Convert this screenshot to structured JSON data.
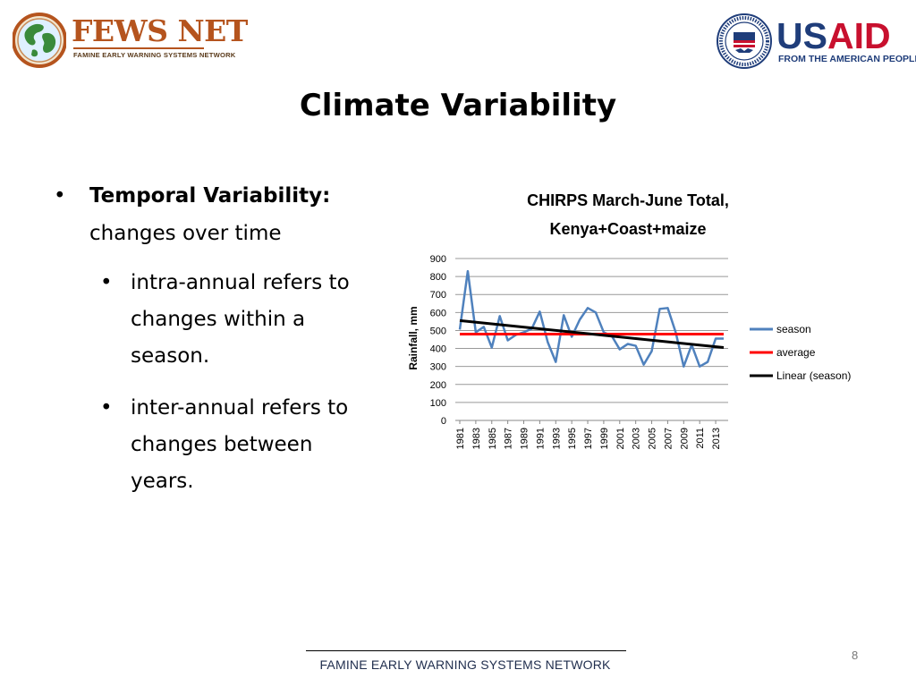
{
  "logos": {
    "fews_name": "FEWS NET",
    "fews_tagline": "FAMINE EARLY WARNING SYSTEMS NETWORK",
    "usaid_name_part1": "US",
    "usaid_name_part2": "AID",
    "usaid_tagline": "FROM THE AMERICAN PEOPLE"
  },
  "slide": {
    "title": "Climate Variability",
    "bullet_main_bold": "Temporal Variability:",
    "bullet_main_rest": "changes over time",
    "sub_bullets": [
      "intra-annual refers to changes within a season.",
      "inter-annual refers to changes between years."
    ],
    "footer": "FAMINE EARLY WARNING SYSTEMS NETWORK",
    "page_number": "8"
  },
  "chart_data": {
    "type": "line",
    "title": "CHIRPS March-June Total, Kenya+Coast+maize",
    "title_lines": [
      "CHIRPS March-June Total,",
      "Kenya+Coast+maize"
    ],
    "xlabel": "",
    "ylabel": "Rainfall, mm",
    "ylim": [
      0,
      900
    ],
    "yticks": [
      0,
      100,
      200,
      300,
      400,
      500,
      600,
      700,
      800,
      900
    ],
    "x": [
      1981,
      1982,
      1983,
      1984,
      1985,
      1986,
      1987,
      1988,
      1989,
      1990,
      1991,
      1992,
      1993,
      1994,
      1995,
      1996,
      1997,
      1998,
      1999,
      2000,
      2001,
      2002,
      2003,
      2004,
      2005,
      2006,
      2007,
      2008,
      2009,
      2010,
      2011,
      2012,
      2013,
      2014
    ],
    "xtick_labels": [
      "1981",
      "1983",
      "1985",
      "1987",
      "1989",
      "1991",
      "1993",
      "1995",
      "1997",
      "1999",
      "2001",
      "2003",
      "2005",
      "2007",
      "2009",
      "2011",
      "2013"
    ],
    "grid": true,
    "legend_position": "right",
    "series": [
      {
        "name": "season",
        "color": "#4f81bd",
        "values": [
          505,
          830,
          490,
          520,
          405,
          580,
          445,
          475,
          490,
          510,
          605,
          435,
          325,
          585,
          465,
          560,
          625,
          600,
          490,
          470,
          395,
          425,
          415,
          310,
          385,
          620,
          625,
          490,
          300,
          420,
          300,
          325,
          455,
          455
        ]
      },
      {
        "name": "average",
        "color": "#ff0000",
        "values": [
          480,
          480,
          480,
          480,
          480,
          480,
          480,
          480,
          480,
          480,
          480,
          480,
          480,
          480,
          480,
          480,
          480,
          480,
          480,
          480,
          480,
          480,
          480,
          480,
          480,
          480,
          480,
          480,
          480,
          480,
          480,
          480,
          480,
          480
        ]
      },
      {
        "name": "Linear (season)",
        "color": "#000000",
        "trend": [
          555,
          405
        ]
      }
    ]
  }
}
